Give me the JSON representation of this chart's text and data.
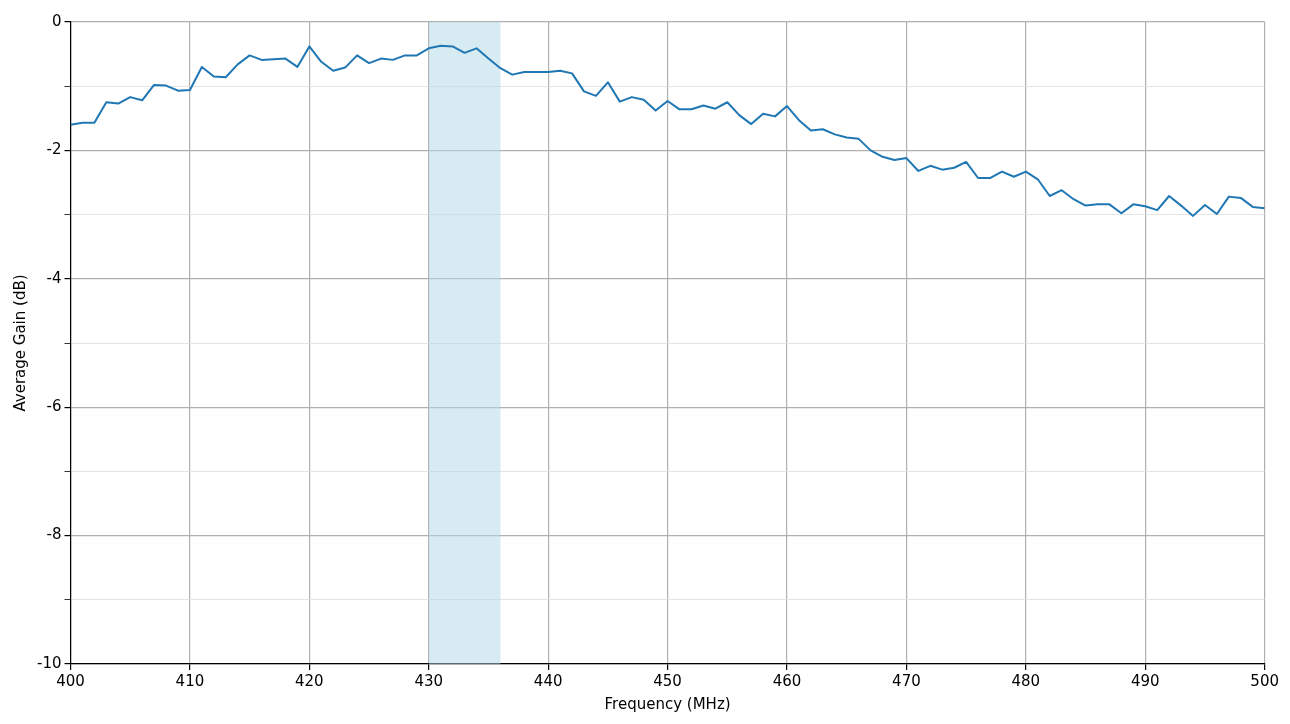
{
  "chart_data": {
    "type": "line",
    "xlabel": "Frequency (MHz)",
    "ylabel": "Average Gain (dB)",
    "x": [
      400,
      401,
      402,
      403,
      404,
      405,
      406,
      407,
      408,
      409,
      410,
      411,
      412,
      413,
      414,
      415,
      416,
      417,
      418,
      419,
      420,
      421,
      422,
      423,
      424,
      425,
      426,
      427,
      428,
      429,
      430,
      431,
      432,
      433,
      434,
      435,
      436,
      437,
      438,
      439,
      440,
      441,
      442,
      443,
      444,
      445,
      446,
      447,
      448,
      449,
      450,
      451,
      452,
      453,
      454,
      455,
      456,
      457,
      458,
      459,
      460,
      461,
      462,
      463,
      464,
      465,
      466,
      467,
      468,
      469,
      470,
      471,
      472,
      473,
      474,
      475,
      476,
      477,
      478,
      479,
      480,
      481,
      482,
      483,
      484,
      485,
      486,
      487,
      488,
      489,
      490,
      491,
      492,
      493,
      494,
      495,
      496,
      497,
      498,
      499,
      500
    ],
    "series": [
      {
        "color": "#1f77b4",
        "values": [
          -1.6,
          -1.57,
          -1.57,
          -1.25,
          -1.27,
          -1.17,
          -1.22,
          -0.98,
          -0.99,
          -1.07,
          -1.06,
          -0.7,
          -0.85,
          -0.86,
          -0.66,
          -0.52,
          -0.59,
          -0.58,
          -0.57,
          -0.7,
          -0.38,
          -0.62,
          -0.76,
          -0.71,
          -0.52,
          -0.64,
          -0.57,
          -0.59,
          -0.52,
          -0.52,
          -0.41,
          -0.37,
          -0.38,
          -0.48,
          -0.41,
          -0.57,
          -0.72,
          -0.82,
          -0.78,
          -0.78,
          -0.78,
          -0.76,
          -0.8,
          -1.08,
          -1.15,
          -0.94,
          -1.24,
          -1.17,
          -1.21,
          -1.38,
          -1.23,
          -1.36,
          -1.36,
          -1.3,
          -1.35,
          -1.25,
          -1.45,
          -1.59,
          -1.43,
          -1.47,
          -1.31,
          -1.53,
          -1.69,
          -1.67,
          -1.75,
          -1.8,
          -1.82,
          -2.0,
          -2.1,
          -2.15,
          -2.12,
          -2.32,
          -2.24,
          -2.3,
          -2.27,
          -2.18,
          -2.43,
          -2.43,
          -2.33,
          -2.41,
          -2.33,
          -2.45,
          -2.71,
          -2.62,
          -2.76,
          -2.86,
          -2.84,
          -2.84,
          -2.98,
          -2.84,
          -2.87,
          -2.93,
          -2.71,
          -2.86,
          -3.02,
          -2.85,
          -2.99,
          -2.72,
          -2.74,
          -2.88,
          -2.9
        ]
      }
    ],
    "xlim": [
      400,
      500
    ],
    "xticks": [
      400,
      410,
      420,
      430,
      440,
      450,
      460,
      470,
      480,
      490,
      500
    ],
    "ylim": [
      -10,
      0
    ],
    "yticks": [
      -10,
      {
        "value": -9,
        "label": null
      },
      -8,
      {
        "value": -7,
        "label": null
      },
      -6,
      {
        "value": -5,
        "label": null
      },
      -4,
      {
        "value": -3,
        "label": null
      },
      -2,
      {
        "value": -1,
        "label": null
      },
      0
    ],
    "bands": [
      {
        "axis": "x",
        "from": 430,
        "to": 436,
        "color": "#add8e6"
      }
    ],
    "grid": true,
    "marker": "none",
    "line_style": "solid"
  }
}
